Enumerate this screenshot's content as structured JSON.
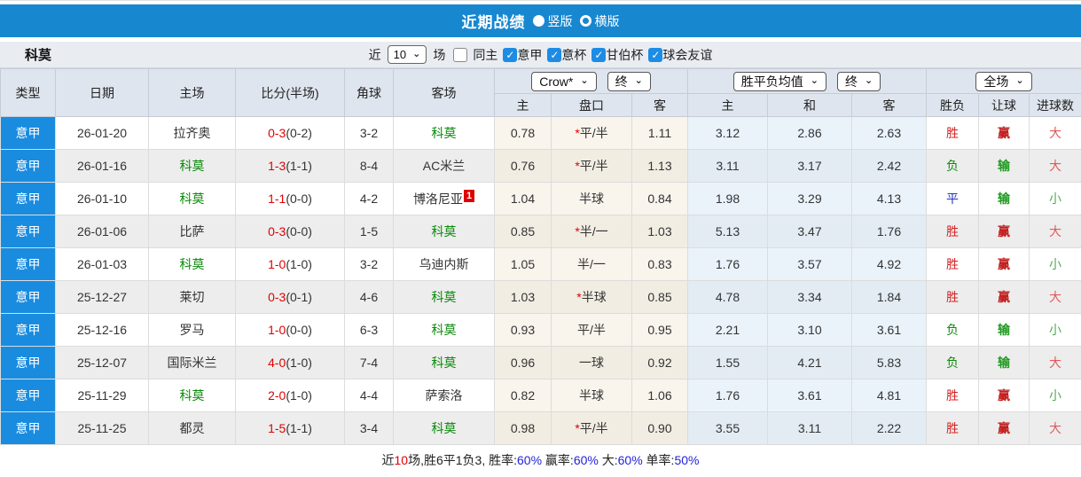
{
  "icons": {
    "chevron": "⌄",
    "check": "✓"
  },
  "title_bar": {
    "title": "近期战绩",
    "radio_vertical": "竖版",
    "radio_horizontal": "横版",
    "selected": "竖版"
  },
  "filter_bar": {
    "team": "科莫",
    "near_label": "近",
    "match_count": "10",
    "matches_label": "场",
    "checkboxes": [
      {
        "label": "同主",
        "checked": false
      },
      {
        "label": "意甲",
        "checked": true
      },
      {
        "label": "意杯",
        "checked": true
      },
      {
        "label": "甘伯杯",
        "checked": true
      },
      {
        "label": "球会友谊",
        "checked": true
      }
    ]
  },
  "table": {
    "headers": {
      "col_type": "类型",
      "col_date": "日期",
      "col_home": "主场",
      "col_score": "比分(半场)",
      "col_corner": "角球",
      "col_away": "客场",
      "dropdown_crow": "Crow*",
      "dropdown_final1": "终",
      "dropdown_avg": "胜平负均值",
      "dropdown_final2": "终",
      "dropdown_full": "全场",
      "sub": [
        "主",
        "盘口",
        "客",
        "主",
        "和",
        "客",
        "胜负",
        "让球",
        "进球数"
      ]
    },
    "rows": [
      {
        "league": "意甲",
        "date": "26-01-20",
        "home": "拉齐奥",
        "score": "0-3",
        "half": "(0-2)",
        "corner": "3-2",
        "away": "科莫",
        "badge": "",
        "odds_home": "0.78",
        "handicap": "*平/半",
        "odds_away": "1.11",
        "avg_home": "3.12",
        "avg_draw": "2.86",
        "avg_away": "2.63",
        "result": "胜",
        "handicap_result": "赢",
        "goals": "大"
      },
      {
        "league": "意甲",
        "date": "26-01-16",
        "home": "科莫",
        "score": "1-3",
        "half": "(1-1)",
        "corner": "8-4",
        "away": "AC米兰",
        "badge": "",
        "odds_home": "0.76",
        "handicap": "*平/半",
        "odds_away": "1.13",
        "avg_home": "3.11",
        "avg_draw": "3.17",
        "avg_away": "2.42",
        "result": "负",
        "handicap_result": "输",
        "goals": "大"
      },
      {
        "league": "意甲",
        "date": "26-01-10",
        "home": "科莫",
        "score": "1-1",
        "half": "(0-0)",
        "corner": "4-2",
        "away": "博洛尼亚",
        "badge": "1",
        "odds_home": "1.04",
        "handicap": "半球",
        "odds_away": "0.84",
        "avg_home": "1.98",
        "avg_draw": "3.29",
        "avg_away": "4.13",
        "result": "平",
        "handicap_result": "输",
        "goals": "小"
      },
      {
        "league": "意甲",
        "date": "26-01-06",
        "home": "比萨",
        "score": "0-3",
        "half": "(0-0)",
        "corner": "1-5",
        "away": "科莫",
        "badge": "",
        "odds_home": "0.85",
        "handicap": "*半/一",
        "odds_away": "1.03",
        "avg_home": "5.13",
        "avg_draw": "3.47",
        "avg_away": "1.76",
        "result": "胜",
        "handicap_result": "赢",
        "goals": "大"
      },
      {
        "league": "意甲",
        "date": "26-01-03",
        "home": "科莫",
        "score": "1-0",
        "half": "(1-0)",
        "corner": "3-2",
        "away": "乌迪内斯",
        "badge": "",
        "odds_home": "1.05",
        "handicap": "半/一",
        "odds_away": "0.83",
        "avg_home": "1.76",
        "avg_draw": "3.57",
        "avg_away": "4.92",
        "result": "胜",
        "handicap_result": "赢",
        "goals": "小"
      },
      {
        "league": "意甲",
        "date": "25-12-27",
        "home": "莱切",
        "score": "0-3",
        "half": "(0-1)",
        "corner": "4-6",
        "away": "科莫",
        "badge": "",
        "odds_home": "1.03",
        "handicap": "*半球",
        "odds_away": "0.85",
        "avg_home": "4.78",
        "avg_draw": "3.34",
        "avg_away": "1.84",
        "result": "胜",
        "handicap_result": "赢",
        "goals": "大"
      },
      {
        "league": "意甲",
        "date": "25-12-16",
        "home": "罗马",
        "score": "1-0",
        "half": "(0-0)",
        "corner": "6-3",
        "away": "科莫",
        "badge": "",
        "odds_home": "0.93",
        "handicap": "平/半",
        "odds_away": "0.95",
        "avg_home": "2.21",
        "avg_draw": "3.10",
        "avg_away": "3.61",
        "result": "负",
        "handicap_result": "输",
        "goals": "小"
      },
      {
        "league": "意甲",
        "date": "25-12-07",
        "home": "国际米兰",
        "score": "4-0",
        "half": "(1-0)",
        "corner": "7-4",
        "away": "科莫",
        "badge": "",
        "odds_home": "0.96",
        "handicap": "一球",
        "odds_away": "0.92",
        "avg_home": "1.55",
        "avg_draw": "4.21",
        "avg_away": "5.83",
        "result": "负",
        "handicap_result": "输",
        "goals": "大"
      },
      {
        "league": "意甲",
        "date": "25-11-29",
        "home": "科莫",
        "score": "2-0",
        "half": "(1-0)",
        "corner": "4-4",
        "away": "萨索洛",
        "badge": "",
        "odds_home": "0.82",
        "handicap": "半球",
        "odds_away": "1.06",
        "avg_home": "1.76",
        "avg_draw": "3.61",
        "avg_away": "4.81",
        "result": "胜",
        "handicap_result": "赢",
        "goals": "小"
      },
      {
        "league": "意甲",
        "date": "25-11-25",
        "home": "都灵",
        "score": "1-5",
        "half": "(1-1)",
        "corner": "3-4",
        "away": "科莫",
        "badge": "",
        "odds_home": "0.98",
        "handicap": "*平/半",
        "odds_away": "0.90",
        "avg_home": "3.55",
        "avg_draw": "3.11",
        "avg_away": "2.22",
        "result": "胜",
        "handicap_result": "赢",
        "goals": "大"
      }
    ]
  },
  "footer": {
    "parts": [
      {
        "t": "近",
        "c": "k"
      },
      {
        "t": "10",
        "c": "r"
      },
      {
        "t": "场,胜6平1负3, 胜率:",
        "c": "k"
      },
      {
        "t": "60%",
        "c": "b"
      },
      {
        "t": " 赢率:",
        "c": "k"
      },
      {
        "t": "60%",
        "c": "b"
      },
      {
        "t": " 大:",
        "c": "k"
      },
      {
        "t": "60%",
        "c": "b"
      },
      {
        "t": " 单率:",
        "c": "k"
      },
      {
        "t": "50%",
        "c": "b"
      }
    ]
  },
  "colors": {
    "titlebar_blue": "#1787d0",
    "league_cell_blue": "#1a8ce0",
    "checkbox_blue": "#1d8ce4",
    "header_bg": "#dfe5ee",
    "crow_tint": "#f9f4ec",
    "avg_tint": "#eaf3fa",
    "win_red": "#d42222",
    "lose_green": "#1f9a1f",
    "draw_blue": "#2233cc",
    "score_red": "#e00000",
    "como_green": "#0a8a0a"
  }
}
